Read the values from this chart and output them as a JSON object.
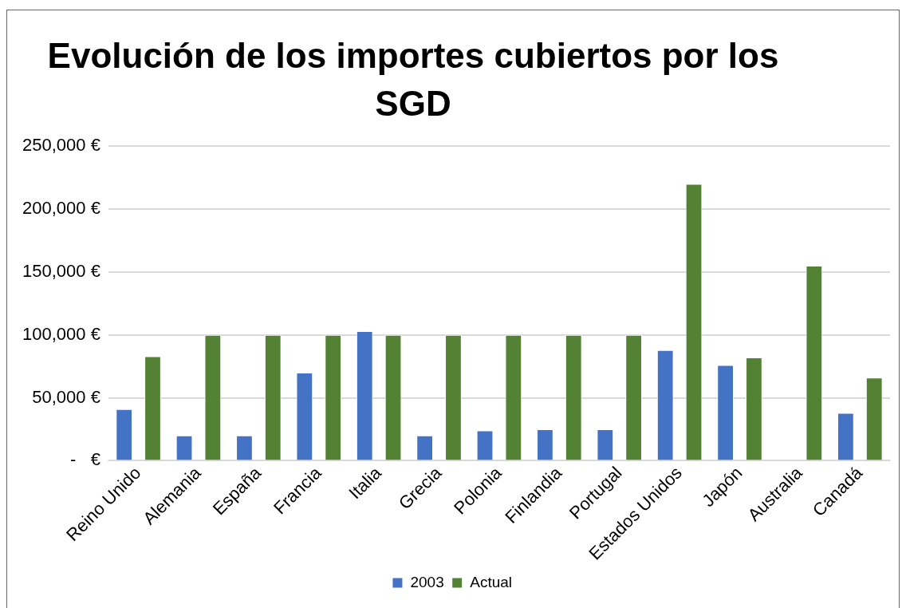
{
  "chart_data": {
    "type": "bar",
    "title": "Evolución de los importes cubiertos por los SGD",
    "categories": [
      "Reino Unido",
      "Alemania",
      "España",
      "Francia",
      "Italia",
      "Grecia",
      "Polonia",
      "Finlandia",
      "Portugal",
      "Estados Unidos",
      "Japón",
      "Australia",
      "Canadá"
    ],
    "series": [
      {
        "name": "2003",
        "color": "#4472c4",
        "values": [
          41000,
          20000,
          20000,
          70000,
          103000,
          20000,
          24000,
          25000,
          25000,
          88000,
          76000,
          null,
          38000
        ]
      },
      {
        "name": "Actual",
        "color": "#548235",
        "values": [
          83000,
          100000,
          100000,
          100000,
          100000,
          100000,
          100000,
          100000,
          100000,
          220000,
          82000,
          155000,
          66000
        ]
      }
    ],
    "ylim": [
      0,
      250000
    ],
    "yticks": [
      {
        "value": 0,
        "label": "-   €"
      },
      {
        "value": 50000,
        "label": "50,000 €"
      },
      {
        "value": 100000,
        "label": "100,000 €"
      },
      {
        "value": 150000,
        "label": "150,000 €"
      },
      {
        "value": 200000,
        "label": "200,000 €"
      },
      {
        "value": 250000,
        "label": "250,000 €"
      }
    ],
    "grid": "y",
    "legend": "bottom"
  }
}
